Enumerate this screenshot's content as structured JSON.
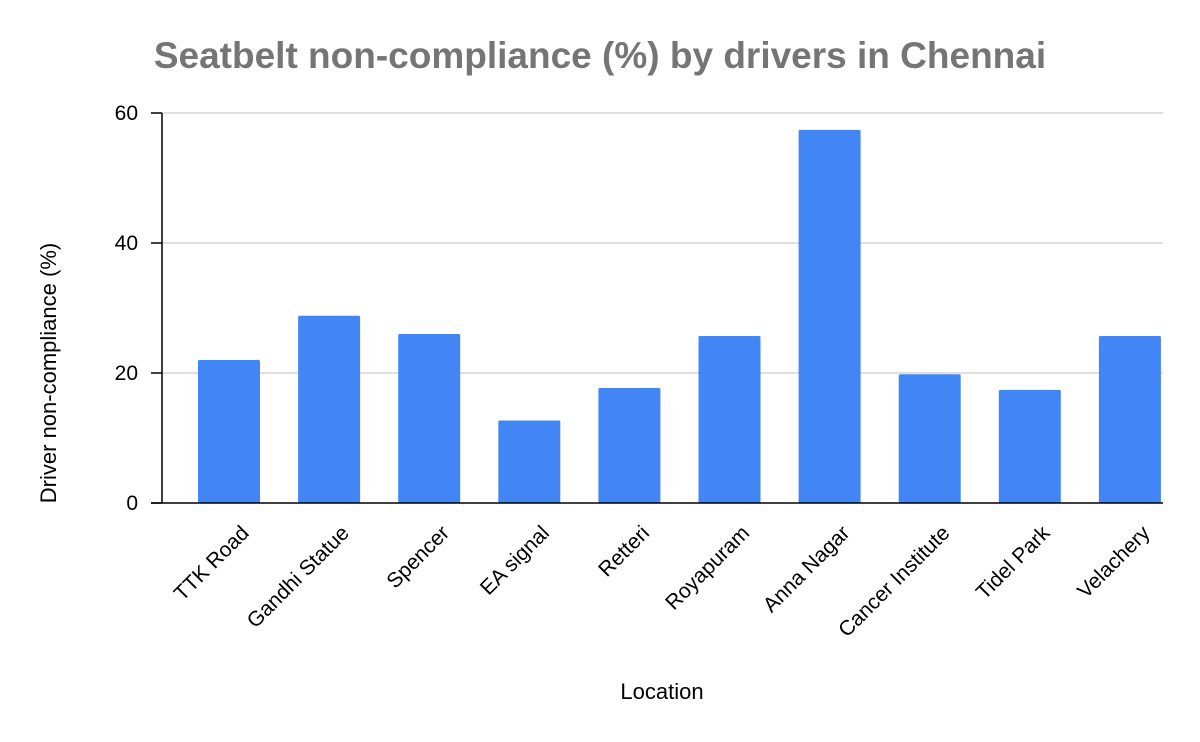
{
  "chart_data": {
    "type": "bar",
    "title": "Seatbelt non-compliance (%) by drivers in Chennai",
    "xlabel": "Location",
    "ylabel": "Driver non-compliance (%)",
    "categories": [
      "TTK Road",
      "Gandhi Statue",
      "Spencer",
      "EA signal",
      "Retteri",
      "Royapuram",
      "Anna Nagar",
      "Cancer Institute",
      "Tidel Park",
      "Velachery"
    ],
    "values": [
      22,
      28.8,
      26,
      12.7,
      17.7,
      25.7,
      57.4,
      19.8,
      17.4,
      25.7
    ],
    "ylim": [
      0,
      60
    ],
    "yticks": [
      0,
      20,
      40,
      60
    ],
    "grid": true,
    "legend": "none",
    "colors": {
      "bar": "#4285f4",
      "grid": "#cccccc",
      "axis": "#000000",
      "title": "#757575"
    }
  }
}
